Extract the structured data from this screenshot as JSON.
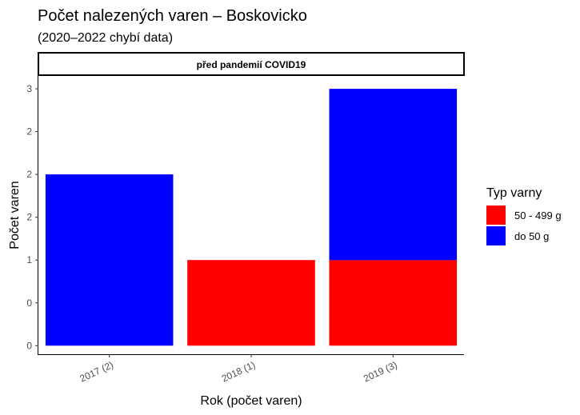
{
  "title": "Počet nalezených varen – Boskovicko",
  "subtitle": "(2020–2022 chybí data)",
  "chart_data": {
    "type": "bar",
    "stacked": true,
    "facet_label": "před pandemií COVID19",
    "categories": [
      "2017 (2)",
      "2018 (1)",
      "2019 (3)"
    ],
    "series": [
      {
        "name": "50 - 499 g",
        "color": "#ff0000",
        "values": [
          0,
          1,
          1
        ]
      },
      {
        "name": "do 50 g",
        "color": "#0000ff",
        "values": [
          2,
          0,
          2
        ]
      }
    ],
    "y_ticks": [
      0,
      0.5,
      1,
      1.5,
      2,
      2.5,
      3
    ],
    "y_tick_labels": [
      "0",
      "0",
      "1",
      "2",
      "2",
      "2",
      "3"
    ],
    "ylim": [
      -0.1,
      3.15
    ],
    "xlabel": "Rok (počet varen)",
    "ylabel": "Počet varen",
    "legend": {
      "title": "Typ varny",
      "position": "right",
      "items": [
        {
          "label": "50 - 499 g",
          "color": "#ff0000"
        },
        {
          "label": "do 50 g",
          "color": "#0000ff"
        }
      ]
    },
    "grid": false
  }
}
